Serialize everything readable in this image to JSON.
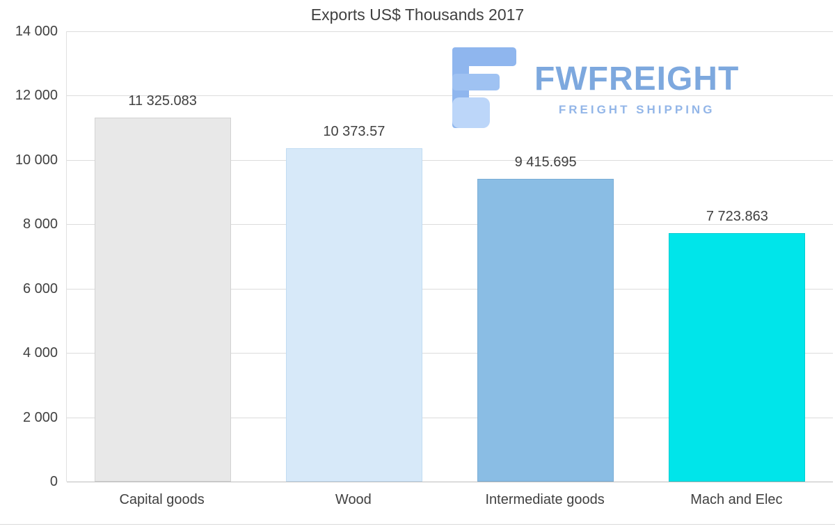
{
  "chart_data": {
    "type": "bar",
    "title": "Exports US$ Thousands 2017",
    "categories": [
      "Capital goods",
      "Wood",
      "Intermediate goods",
      "Mach and Elec"
    ],
    "values": [
      11325.083,
      10373.57,
      9415.695,
      7723.863
    ],
    "value_labels": [
      "11 325.083",
      "10 373.57",
      "9 415.695",
      "7 723.863"
    ],
    "bar_colors": [
      "#e8e8e8",
      "#d7e9f9",
      "#8abde4",
      "#00e5ea"
    ],
    "bar_borders": [
      "#d2d2d2",
      "#c1dcf3",
      "#79add6",
      "#00ccd2"
    ],
    "ylim": [
      0,
      14000
    ],
    "yticks": [
      0,
      2000,
      4000,
      6000,
      8000,
      10000,
      12000,
      14000
    ],
    "ytick_labels": [
      "0",
      "2 000",
      "4 000",
      "6 000",
      "8 000",
      "10 000",
      "12 000",
      "14 000"
    ],
    "grid": "horizontal",
    "legend": "none"
  },
  "watermark": {
    "brand": "FWFREIGHT",
    "tagline": "FREIGHT SHIPPING",
    "brand_color": "#7da8de",
    "icon_color_dark": "#8fb6ee",
    "icon_color_light": "#bcd6f9"
  }
}
